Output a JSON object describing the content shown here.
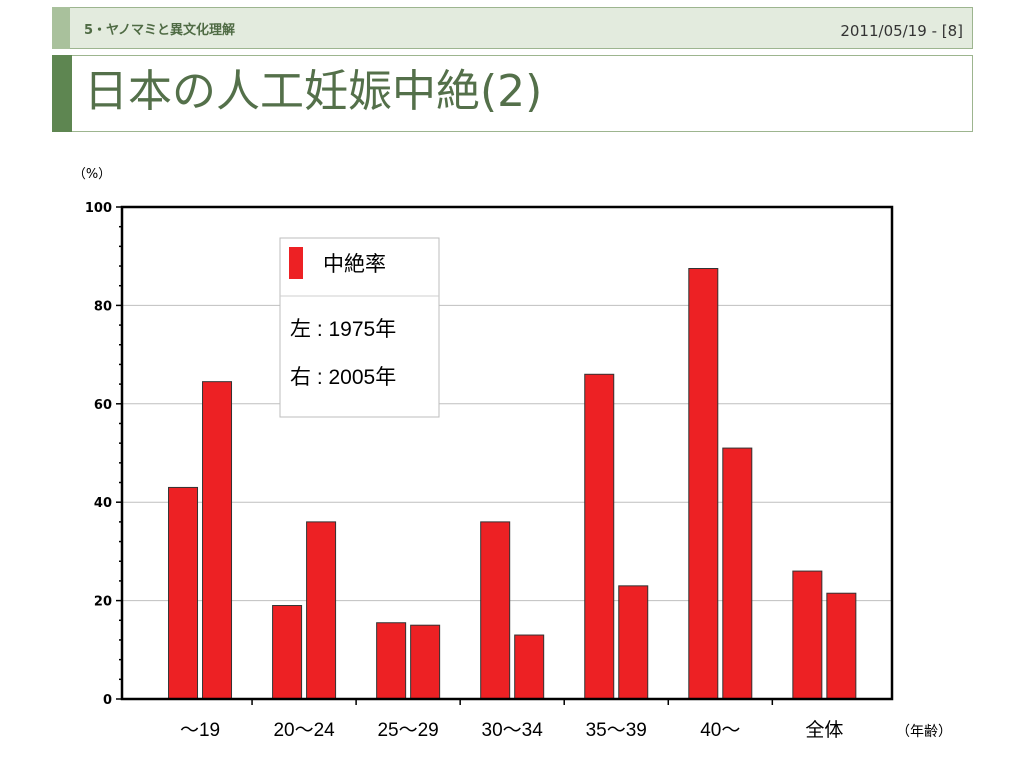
{
  "header": {
    "section": "5・ヤノマミと異文化理解",
    "date": "2011/05/19 - [8]"
  },
  "title": "日本の人工妊娠中絶(2)",
  "colors": {
    "bar": "#ed2124",
    "accent_dark": "#5e8651",
    "accent_light": "#a9c19c",
    "header_bg": "#e3ebde",
    "title_text": "#54704a"
  },
  "chart_data": {
    "type": "bar",
    "y_unit": "（%）",
    "x_unit": "（年齢）",
    "categories": [
      "～19",
      "20～24",
      "25～29",
      "30～34",
      "35～39",
      "40～",
      "全体"
    ],
    "series": [
      {
        "name": "左 : 1975年",
        "values": [
          43,
          19,
          15.5,
          36,
          66,
          87.5,
          26
        ]
      },
      {
        "name": "右 : 2005年",
        "values": [
          64.5,
          36,
          15,
          13,
          23,
          51,
          21.5
        ]
      }
    ],
    "legend": {
      "title": "中絶率",
      "position": "top-left"
    },
    "ylim": [
      0,
      100
    ],
    "yticks": [
      0,
      20,
      40,
      60,
      80,
      100
    ],
    "grid": true
  }
}
